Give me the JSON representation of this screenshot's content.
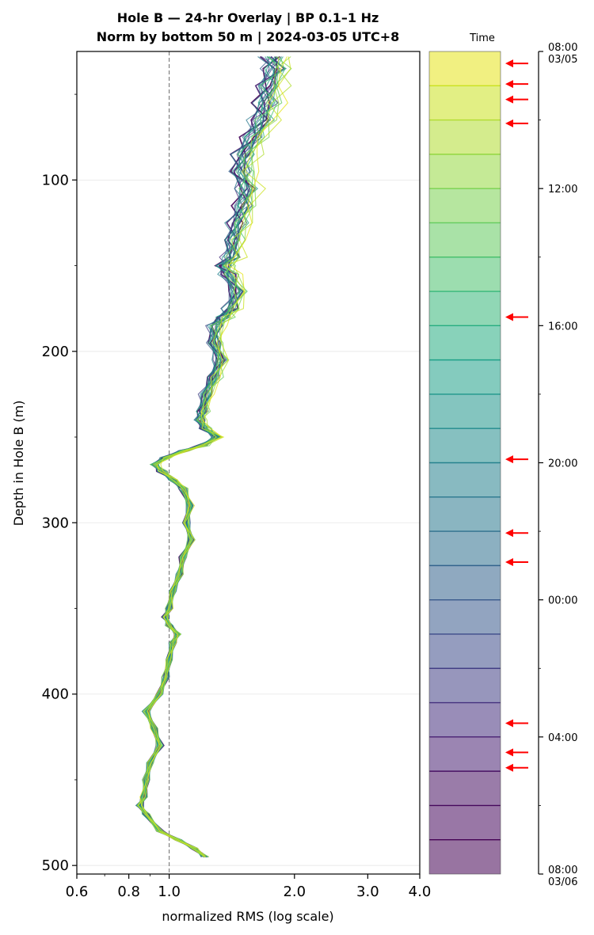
{
  "chart_data": {
    "type": "line",
    "title": "Hole B — 24-hr Overlay  |  BP 0.1–1 Hz",
    "subtitle": "Norm by bottom 50 m  |  2024-03-05 UTC+8",
    "xlabel": "normalized RMS  (log scale)",
    "ylabel": "Depth in Hole B (m)",
    "x_scale": "log",
    "xlim": [
      0.6,
      4.0
    ],
    "ylim": [
      505,
      25
    ],
    "x_ticks": [
      "0.6",
      "0.8",
      "1.0",
      "2.0",
      "3.0",
      "4.0"
    ],
    "y_ticks": [
      "100",
      "200",
      "300",
      "400",
      "500"
    ],
    "reference_line_x": 1.0,
    "grid": "horizontal",
    "profile": {
      "depth": [
        28,
        35,
        45,
        55,
        65,
        75,
        85,
        95,
        105,
        115,
        125,
        135,
        145,
        150,
        155,
        165,
        175,
        180,
        185,
        195,
        205,
        215,
        225,
        235,
        240,
        245,
        250,
        255,
        258,
        262,
        266,
        270,
        275,
        280,
        290,
        300,
        310,
        320,
        330,
        340,
        350,
        355,
        360,
        365,
        370,
        380,
        390,
        400,
        410,
        420,
        430,
        440,
        450,
        460,
        465,
        470,
        480,
        485,
        490,
        495
      ],
      "rms": [
        1.75,
        1.78,
        1.72,
        1.7,
        1.65,
        1.58,
        1.5,
        1.48,
        1.52,
        1.5,
        1.45,
        1.42,
        1.4,
        1.35,
        1.38,
        1.45,
        1.4,
        1.35,
        1.28,
        1.28,
        1.32,
        1.28,
        1.22,
        1.2,
        1.18,
        1.22,
        1.3,
        1.2,
        1.08,
        0.98,
        0.92,
        0.96,
        1.02,
        1.08,
        1.12,
        1.1,
        1.13,
        1.08,
        1.06,
        1.02,
        1.0,
        0.98,
        1.0,
        1.05,
        1.02,
        1.0,
        0.98,
        0.95,
        0.88,
        0.92,
        0.95,
        0.9,
        0.88,
        0.87,
        0.85,
        0.88,
        0.95,
        1.05,
        1.15,
        1.22
      ]
    },
    "series": [
      {
        "time": "08:00",
        "color": "#440154"
      },
      {
        "time": "09:00",
        "color": "#46085c"
      },
      {
        "time": "10:00",
        "color": "#471063"
      },
      {
        "time": "11:00",
        "color": "#482173"
      },
      {
        "time": "12:00",
        "color": "#46307e"
      },
      {
        "time": "13:00",
        "color": "#423f85"
      },
      {
        "time": "14:00",
        "color": "#3e4c8a"
      },
      {
        "time": "15:00",
        "color": "#38598c"
      },
      {
        "time": "16:00",
        "color": "#33638d"
      },
      {
        "time": "17:00",
        "color": "#2e6f8e"
      },
      {
        "time": "18:00",
        "color": "#2a788e"
      },
      {
        "time": "19:00",
        "color": "#26828e"
      },
      {
        "time": "20:00",
        "color": "#228c8d"
      },
      {
        "time": "21:00",
        "color": "#1f968b"
      },
      {
        "time": "22:00",
        "color": "#1fa188"
      },
      {
        "time": "23:00",
        "color": "#26ad81"
      },
      {
        "time": "00:00",
        "color": "#35b779"
      },
      {
        "time": "01:00",
        "color": "#4ac16d"
      },
      {
        "time": "02:00",
        "color": "#63cb5f"
      },
      {
        "time": "03:00",
        "color": "#7ad151"
      },
      {
        "time": "04:00",
        "color": "#95d840"
      },
      {
        "time": "05:00",
        "color": "#b0dd2f"
      },
      {
        "time": "06:00",
        "color": "#cae11f"
      },
      {
        "time": "07:00",
        "color": "#e5e419"
      }
    ],
    "colorbar": {
      "label": "Time",
      "ticks": [
        {
          "hours": 0,
          "label": "08:00",
          "sublabel": "03/05"
        },
        {
          "hours": 4,
          "label": "12:00"
        },
        {
          "hours": 8,
          "label": "16:00"
        },
        {
          "hours": 12,
          "label": "20:00"
        },
        {
          "hours": 16,
          "label": "00:00"
        },
        {
          "hours": 20,
          "label": "04:00"
        },
        {
          "hours": 24,
          "label": "08:00",
          "sublabel": "03/06"
        }
      ],
      "arrow_hours": [
        0.35,
        0.95,
        1.4,
        2.1,
        7.75,
        11.9,
        14.05,
        14.9,
        19.6,
        20.45,
        20.9
      ]
    }
  }
}
